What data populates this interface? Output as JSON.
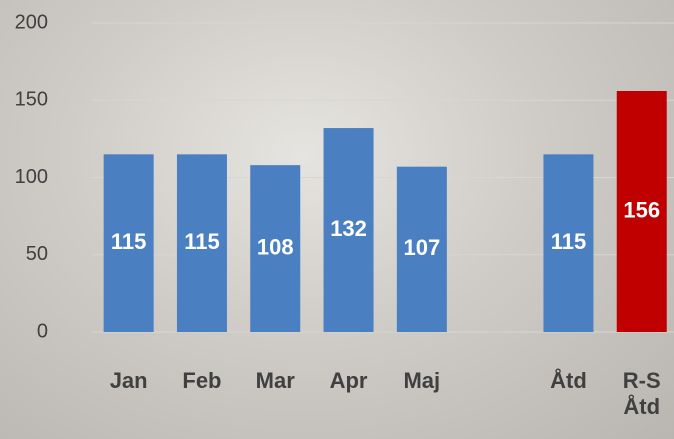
{
  "chart_data": {
    "type": "bar",
    "categories": [
      "Jan",
      "Feb",
      "Mar",
      "Apr",
      "Maj",
      null,
      "Åtd",
      "R-S Åtd"
    ],
    "values": [
      115,
      115,
      108,
      132,
      107,
      null,
      115,
      156
    ],
    "colors": [
      "#4a7fc1",
      "#4a7fc1",
      "#4a7fc1",
      "#4a7fc1",
      "#4a7fc1",
      "#4a7fc1",
      "#4a7fc1",
      "#c00000"
    ],
    "ylim": [
      0,
      200
    ],
    "yticks": [
      0,
      50,
      100,
      150,
      200
    ],
    "grid": true
  }
}
